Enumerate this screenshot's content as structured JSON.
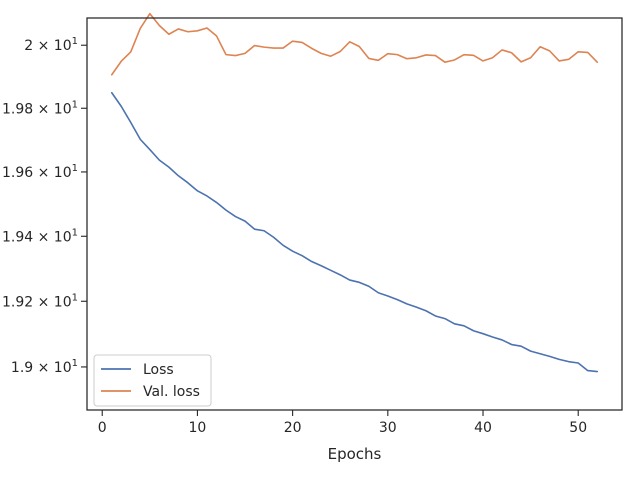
{
  "chart_data": {
    "type": "line",
    "title": "",
    "xlabel": "Epochs",
    "ylabel": "",
    "xlim": [
      -1.6,
      54.6
    ],
    "ylim": [
      18.87,
      20.087
    ],
    "y_scale": "log",
    "grid": false,
    "legend_position": "lower-left",
    "x_ticks": [
      0,
      10,
      20,
      30,
      40,
      50
    ],
    "x_tick_labels": [
      "0",
      "10",
      "20",
      "30",
      "40",
      "50"
    ],
    "y_ticks": [
      {
        "value": 19.0,
        "mantissa": "1.9",
        "exponent": "1"
      },
      {
        "value": 19.2,
        "mantissa": "1.92",
        "exponent": "1"
      },
      {
        "value": 19.4,
        "mantissa": "1.94",
        "exponent": "1"
      },
      {
        "value": 19.6,
        "mantissa": "1.96",
        "exponent": "1"
      },
      {
        "value": 19.8,
        "mantissa": "1.98",
        "exponent": "1"
      },
      {
        "value": 20.0,
        "mantissa": "2",
        "exponent": "1"
      }
    ],
    "x": [
      1,
      2,
      3,
      4,
      5,
      6,
      7,
      8,
      9,
      10,
      11,
      12,
      13,
      14,
      15,
      16,
      17,
      18,
      19,
      20,
      21,
      22,
      23,
      24,
      25,
      26,
      27,
      28,
      29,
      30,
      31,
      32,
      33,
      34,
      35,
      36,
      37,
      38,
      39,
      40,
      41,
      42,
      43,
      44,
      45,
      46,
      47,
      48,
      49,
      50,
      51,
      52
    ],
    "series": [
      {
        "name": "Loss",
        "color": "#4c72b0",
        "values": [
          19.849,
          19.806,
          19.755,
          19.702,
          19.67,
          19.637,
          19.615,
          19.588,
          19.566,
          19.541,
          19.525,
          19.505,
          19.481,
          19.461,
          19.447,
          19.422,
          19.417,
          19.397,
          19.372,
          19.354,
          19.34,
          19.322,
          19.309,
          19.295,
          19.281,
          19.265,
          19.258,
          19.246,
          19.226,
          19.216,
          19.205,
          19.192,
          19.182,
          19.171,
          19.155,
          19.147,
          19.131,
          19.125,
          19.11,
          19.101,
          19.091,
          19.082,
          19.068,
          19.063,
          19.048,
          19.04,
          19.032,
          19.023,
          19.016,
          19.012,
          18.989,
          18.986
        ]
      },
      {
        "name": "Val. loss",
        "color": "#dd8452",
        "values": [
          19.906,
          19.949,
          19.979,
          20.054,
          20.101,
          20.063,
          20.035,
          20.052,
          20.043,
          20.046,
          20.055,
          20.03,
          19.97,
          19.967,
          19.974,
          19.999,
          19.994,
          19.991,
          19.991,
          20.013,
          20.009,
          19.99,
          19.974,
          19.965,
          19.98,
          20.011,
          19.996,
          19.958,
          19.952,
          19.973,
          19.97,
          19.957,
          19.96,
          19.969,
          19.967,
          19.946,
          19.953,
          19.97,
          19.968,
          19.95,
          19.96,
          19.985,
          19.976,
          19.947,
          19.96,
          19.995,
          19.982,
          19.95,
          19.955,
          19.979,
          19.977,
          19.946
        ]
      }
    ]
  }
}
